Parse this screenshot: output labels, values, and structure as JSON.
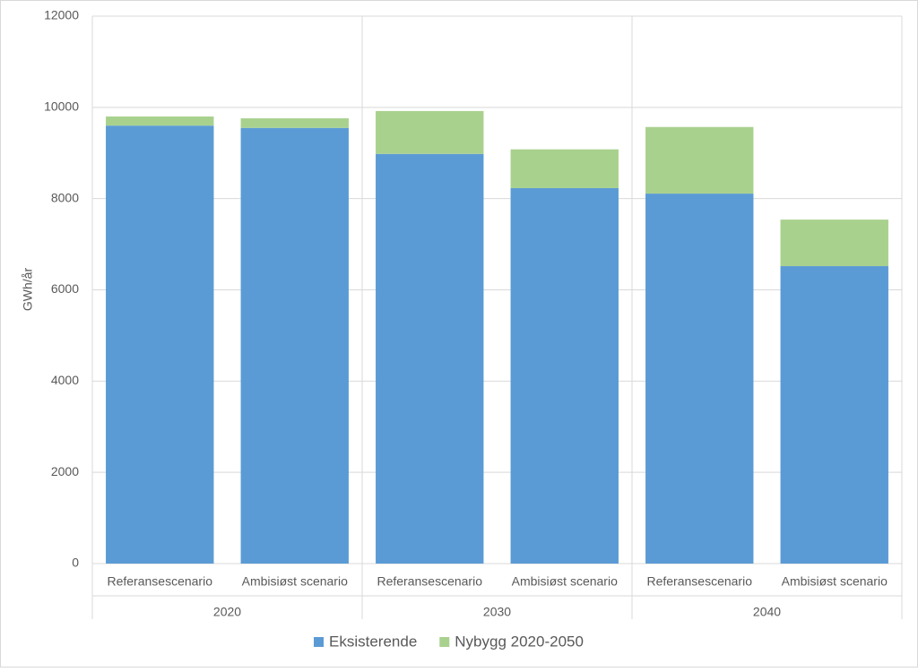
{
  "chart_data": {
    "type": "stacked-bar",
    "y_label": "GWh/år",
    "categories": [
      "Referansescenario",
      "Ambisiøst scenario",
      "Referansescenario",
      "Ambisiøst scenario",
      "Referansescenario",
      "Ambisiøst scenario"
    ],
    "groups": [
      "2020",
      "2030",
      "2040"
    ],
    "series": [
      {
        "name": "Eksisterende",
        "color": "#5b9bd5",
        "values": [
          9600,
          9550,
          8980,
          8230,
          8110,
          6520
        ]
      },
      {
        "name": "Nybygg 2020-2050",
        "color": "#a9d18e",
        "values": [
          200,
          210,
          940,
          850,
          1460,
          1020
        ]
      }
    ],
    "ylim": [
      0,
      12000
    ],
    "yticks": [
      0,
      2000,
      4000,
      6000,
      8000,
      10000,
      12000
    ],
    "grid": true,
    "legend": "bottom"
  }
}
